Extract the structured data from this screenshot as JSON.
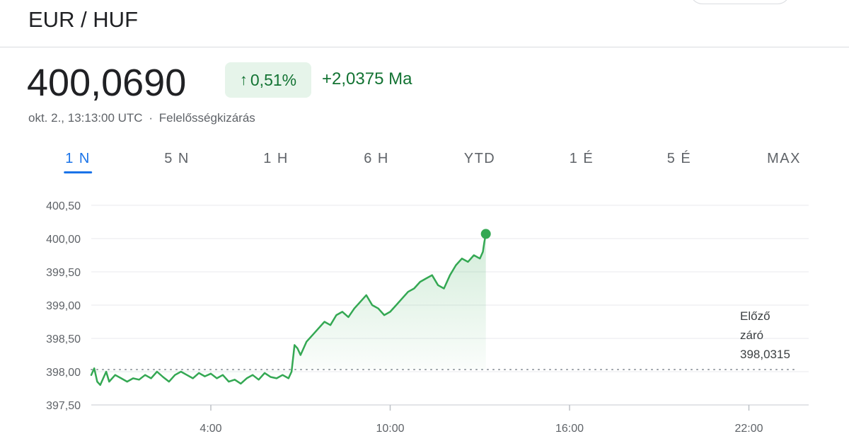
{
  "header": {
    "pair": "EUR / HUF"
  },
  "quote": {
    "price": "400,0690",
    "change_pct": "0,51%",
    "change_abs": "+2,0375 Ma",
    "timestamp": "okt. 2., 13:13:00 UTC",
    "separator": "·",
    "disclaimer": "Felelősségkizárás",
    "arrow_icon": "arrow-up-icon",
    "up_color": "#137333",
    "up_bg": "#e6f4ea"
  },
  "tabs": [
    {
      "label": "1 N",
      "active": true
    },
    {
      "label": "5 N",
      "active": false
    },
    {
      "label": "1 H",
      "active": false
    },
    {
      "label": "6 H",
      "active": false
    },
    {
      "label": "YTD",
      "active": false
    },
    {
      "label": "1 É",
      "active": false
    },
    {
      "label": "5 É",
      "active": false
    },
    {
      "label": "MAX",
      "active": false
    }
  ],
  "chart_data": {
    "type": "line",
    "line_color": "#34a853",
    "y_ticks": [
      "400,50",
      "400,00",
      "399,50",
      "399,00",
      "398,50",
      "398,00",
      "397,50"
    ],
    "y_tick_values": [
      400.5,
      400.0,
      399.5,
      399.0,
      398.5,
      398.0,
      397.5
    ],
    "ylim": [
      397.5,
      400.5
    ],
    "x_ticks": [
      "4:00",
      "10:00",
      "16:00",
      "22:00"
    ],
    "x_tick_values": [
      4,
      10,
      16,
      22
    ],
    "xlim": [
      0,
      24
    ],
    "previous_close_label": [
      "Előző",
      "záró"
    ],
    "previous_close": 398.0315,
    "previous_close_text": "398,0315",
    "series": [
      {
        "x": [
          0,
          0.1,
          0.2,
          0.3,
          0.4,
          0.5,
          0.6,
          0.8,
          1.0,
          1.2,
          1.4,
          1.6,
          1.8,
          2.0,
          2.2,
          2.4,
          2.6,
          2.8,
          3.0,
          3.2,
          3.4,
          3.6,
          3.8,
          4.0,
          4.2,
          4.4,
          4.6,
          4.8,
          5.0,
          5.2,
          5.4,
          5.6,
          5.8,
          6.0,
          6.2,
          6.4,
          6.6,
          6.7,
          6.8,
          6.9,
          7.0,
          7.2,
          7.4,
          7.6,
          7.8,
          8.0,
          8.2,
          8.4,
          8.6,
          8.8,
          9.0,
          9.2,
          9.4,
          9.6,
          9.8,
          10.0,
          10.2,
          10.4,
          10.6,
          10.8,
          11.0,
          11.2,
          11.4,
          11.6,
          11.8,
          12.0,
          12.2,
          12.4,
          12.6,
          12.8,
          13.0,
          13.1,
          13.15,
          13.2
        ],
        "y": [
          397.95,
          398.05,
          397.85,
          397.8,
          397.9,
          398.0,
          397.85,
          397.95,
          397.9,
          397.85,
          397.9,
          397.88,
          397.95,
          397.9,
          398.0,
          397.92,
          397.85,
          397.95,
          398.0,
          397.95,
          397.9,
          397.98,
          397.93,
          397.97,
          397.9,
          397.95,
          397.85,
          397.88,
          397.82,
          397.9,
          397.95,
          397.88,
          397.98,
          397.92,
          397.9,
          397.95,
          397.9,
          398.0,
          398.4,
          398.35,
          398.25,
          398.45,
          398.55,
          398.65,
          398.75,
          398.7,
          398.85,
          398.9,
          398.82,
          398.95,
          399.05,
          399.15,
          399.0,
          398.95,
          398.85,
          398.9,
          399.0,
          399.1,
          399.2,
          399.25,
          399.35,
          399.4,
          399.45,
          399.3,
          399.25,
          399.45,
          399.6,
          399.7,
          399.65,
          399.75,
          399.7,
          399.8,
          399.95,
          400.07
        ]
      }
    ]
  }
}
